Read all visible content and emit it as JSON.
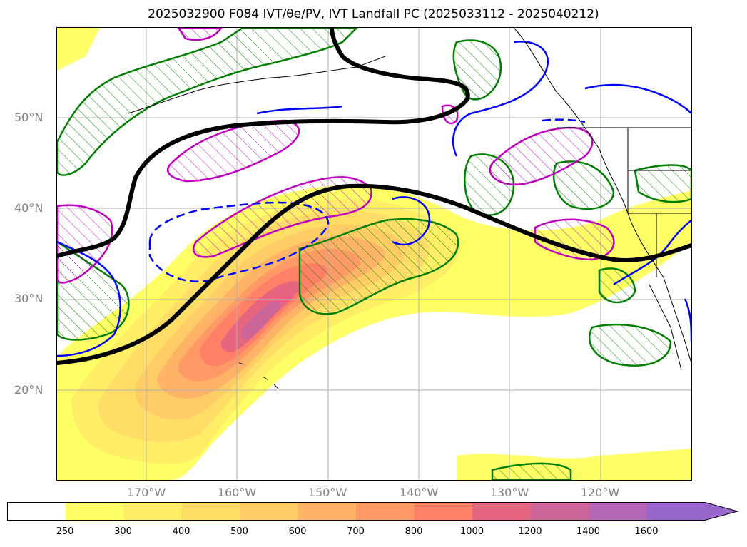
{
  "title": "2025032900 F084 IVT/θe/PV, IVT Landfall PC (2025033112 - 2025040212)",
  "map": {
    "lat_labels": [
      "50°N",
      "40°N",
      "30°N",
      "20°N"
    ],
    "lon_labels": [
      "170°W",
      "160°W",
      "150°W",
      "140°W",
      "130°W",
      "120°W"
    ],
    "colors": {
      "contour_black": "#000000",
      "contour_green": "#007f00",
      "contour_magenta": "#bf00bf",
      "contour_blue": "#0000ff",
      "grid": "#b0b0b0",
      "coastline": "#000000"
    }
  },
  "colorbar": {
    "levels": [
      "250",
      "300",
      "400",
      "500",
      "600",
      "700",
      "800",
      "1000",
      "1200",
      "1400",
      "1600"
    ],
    "colors": [
      "#ffff66",
      "#ffee66",
      "#ffdd66",
      "#ffcc66",
      "#ffb366",
      "#ff9966",
      "#ff8066",
      "#e66680",
      "#cc6699",
      "#b366b3",
      "#9966cc"
    ],
    "extend": "max"
  }
}
